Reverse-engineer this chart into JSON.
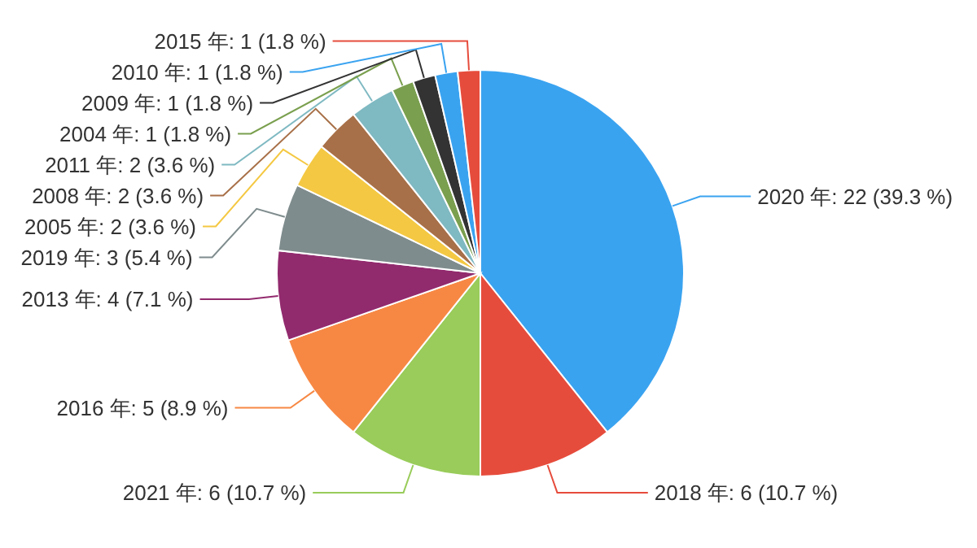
{
  "chart_data": {
    "type": "pie",
    "categories": [
      "2020 年",
      "2018 年",
      "2021 年",
      "2016 年",
      "2013 年",
      "2019 年",
      "2005 年",
      "2008 年",
      "2011 年",
      "2004 年",
      "2009 年",
      "2010 年",
      "2015 年"
    ],
    "values": [
      22,
      6,
      6,
      5,
      4,
      3,
      2,
      2,
      2,
      1,
      1,
      1,
      1
    ],
    "value_labels": [
      "22 (39.3 %)",
      "6 (10.7 %)",
      "6 (10.7 %)",
      "5 (8.9 %)",
      "4 (7.1 %)",
      "3 (5.4 %)",
      "2 (3.6 %)",
      "2 (3.6 %)",
      "2 (3.6 %)",
      "1 (1.8 %)",
      "1 (1.8 %)",
      "1 (1.8 %)",
      "1 (1.8 %)"
    ],
    "colors": [
      "#3aa3f0",
      "#e64c3c",
      "#99cc5a",
      "#f78844",
      "#922a6e",
      "#7f8c8d",
      "#f4c842",
      "#a87048",
      "#7fb9c2",
      "#7a9f4e",
      "#333333",
      "#3aa3f0",
      "#e64c3c"
    ]
  }
}
